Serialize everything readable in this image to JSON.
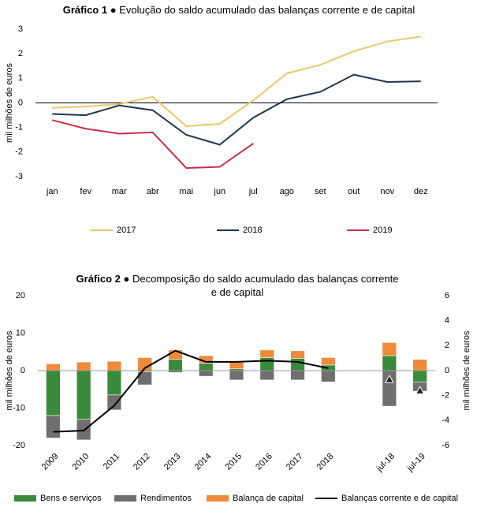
{
  "chart_data": [
    {
      "type": "line",
      "title_label": "Gráfico 1",
      "title": "● Evolução do saldo acumulado das balanças corrente e de capital",
      "y_label": "mil milhões de euros",
      "categories": [
        "jan",
        "fev",
        "mar",
        "abr",
        "mai",
        "jun",
        "jul",
        "ago",
        "set",
        "out",
        "nov",
        "dez"
      ],
      "ylim": [
        -3,
        3
      ],
      "yticks": [
        -3,
        -2,
        -1,
        0,
        1,
        2,
        3
      ],
      "legend": "bottom",
      "series": [
        {
          "name": "2017",
          "color": "#e8c96a",
          "values": [
            -0.2,
            -0.15,
            -0.05,
            0.25,
            -0.95,
            -0.85,
            0.1,
            1.2,
            1.55,
            2.1,
            2.5,
            2.7
          ]
        },
        {
          "name": "2018",
          "color": "#1c3553",
          "values": [
            -0.45,
            -0.5,
            -0.1,
            -0.3,
            -1.3,
            -1.7,
            -0.6,
            0.15,
            0.45,
            1.15,
            0.85,
            0.88
          ]
        },
        {
          "name": "2019",
          "color": "#c9304a",
          "values": [
            -0.7,
            -1.05,
            -1.25,
            -1.2,
            -2.65,
            -2.6,
            -1.65,
            null,
            null,
            null,
            null,
            null
          ]
        }
      ]
    },
    {
      "type": "bar",
      "stacked": true,
      "title_label": "Gráfico 2",
      "title": "● Decomposição do saldo acumulado das balanças corrente e de capital",
      "y_label": "mil milhões de euros",
      "y2_label": "mil milhões de euros",
      "categories": [
        "2009",
        "2010",
        "2011",
        "2012",
        "2013",
        "2014",
        "2015",
        "2016",
        "2017",
        "2018",
        null,
        "jul-18",
        "jul-19"
      ],
      "ylim": [
        -20,
        20
      ],
      "yticks": [
        -20,
        -10,
        0,
        10,
        20
      ],
      "y2lim": [
        -6,
        6
      ],
      "y2ticks": [
        -6,
        -4,
        -2,
        0,
        2,
        4,
        6
      ],
      "legend": "bottom",
      "series": [
        {
          "name": "Bens e serviços",
          "color": "#3a8a3c",
          "values": [
            -12,
            -13,
            -6.5,
            -0.3,
            3,
            2,
            0.5,
            3.5,
            3.3,
            1.5,
            null,
            4,
            -3
          ]
        },
        {
          "name": "Rendimentos",
          "color": "#6f6f6f",
          "values": [
            -6,
            -5.5,
            -4,
            -3.5,
            -0.5,
            -1.5,
            -2.5,
            -2.5,
            -2.5,
            -3,
            null,
            -9.5,
            -2.5
          ]
        },
        {
          "name": "Balança de capital",
          "color": "#ee8a3a",
          "values": [
            1.8,
            2.3,
            2.5,
            3.5,
            2.5,
            2,
            2,
            2,
            2,
            2,
            null,
            3.5,
            3
          ]
        },
        {
          "name": "Balanças corrente e de capital",
          "color": "#000000",
          "type": "line",
          "axis": "y2",
          "markers_after_gap": true,
          "values": [
            -4.9,
            -4.8,
            -2.8,
            0.2,
            1.6,
            0.7,
            0.7,
            0.8,
            0.7,
            0.2,
            null,
            -0.7,
            -1.6
          ]
        }
      ]
    }
  ]
}
